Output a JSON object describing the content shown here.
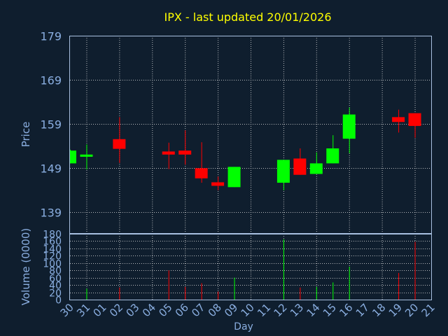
{
  "title": "IPX - last updated 20/01/2026",
  "colors": {
    "up": "#00ff00",
    "down": "#ff0000",
    "background": "#0f1e2e",
    "text": "#8aaee0",
    "title": "#ffff00"
  },
  "chart_data": [
    {
      "type": "candlestick",
      "ylabel": "Price",
      "ylim": [
        134,
        179
      ],
      "yticks": [
        179,
        169,
        159,
        149,
        139
      ],
      "grid": true,
      "categories": [
        "30",
        "31",
        "01",
        "02",
        "03",
        "04",
        "05",
        "06",
        "07",
        "08",
        "09",
        "10",
        "11",
        "12",
        "13",
        "14",
        "15",
        "16",
        "17",
        "18",
        "19",
        "20",
        "21"
      ],
      "candles": [
        {
          "day": "30",
          "open": 150.0,
          "close": 152.9,
          "high": 153.1,
          "low": 150.0
        },
        {
          "day": "31",
          "open": 151.5,
          "close": 152.0,
          "high": 154.3,
          "low": 148.6
        },
        {
          "day": "02",
          "open": 155.5,
          "close": 153.3,
          "high": 160.5,
          "low": 150.1
        },
        {
          "day": "05",
          "open": 152.7,
          "close": 152.0,
          "high": 154.7,
          "low": 148.7
        },
        {
          "day": "06",
          "open": 152.9,
          "close": 152.0,
          "high": 157.5,
          "low": 149.7
        },
        {
          "day": "07",
          "open": 148.9,
          "close": 146.6,
          "high": 154.8,
          "low": 145.6
        },
        {
          "day": "08",
          "open": 145.7,
          "close": 144.9,
          "high": 147.0,
          "low": 143.9
        },
        {
          "day": "09",
          "open": 144.6,
          "close": 149.2,
          "high": 149.2,
          "low": 144.6
        },
        {
          "day": "12",
          "open": 145.6,
          "close": 150.8,
          "high": 150.8,
          "low": 143.9
        },
        {
          "day": "13",
          "open": 151.1,
          "close": 147.4,
          "high": 153.4,
          "low": 147.4
        },
        {
          "day": "14",
          "open": 147.6,
          "close": 150.0,
          "high": 152.5,
          "low": 147.6
        },
        {
          "day": "15",
          "open": 150.0,
          "close": 153.4,
          "high": 156.4,
          "low": 150.0
        },
        {
          "day": "16",
          "open": 155.6,
          "close": 161.1,
          "high": 162.7,
          "low": 152.3
        },
        {
          "day": "19",
          "open": 160.5,
          "close": 159.4,
          "high": 162.2,
          "low": 157.0
        },
        {
          "day": "20",
          "open": 161.4,
          "close": 158.5,
          "high": 161.4,
          "low": 155.8
        }
      ]
    },
    {
      "type": "bar",
      "xlabel": "Day",
      "ylabel": "Volume (0000)",
      "ylim": [
        0,
        180
      ],
      "yticks": [
        180,
        160,
        140,
        120,
        100,
        80,
        60,
        40,
        20,
        0
      ],
      "grid": true,
      "categories": [
        "30",
        "31",
        "01",
        "02",
        "03",
        "04",
        "05",
        "06",
        "07",
        "08",
        "09",
        "10",
        "11",
        "12",
        "13",
        "14",
        "15",
        "16",
        "17",
        "18",
        "19",
        "20",
        "21"
      ],
      "bars": [
        {
          "day": "31",
          "value": 30,
          "direction": "up"
        },
        {
          "day": "02",
          "value": 33,
          "direction": "down"
        },
        {
          "day": "05",
          "value": 80,
          "direction": "down"
        },
        {
          "day": "06",
          "value": 35,
          "direction": "down"
        },
        {
          "day": "07",
          "value": 45,
          "direction": "down"
        },
        {
          "day": "08",
          "value": 22,
          "direction": "down"
        },
        {
          "day": "09",
          "value": 60,
          "direction": "up"
        },
        {
          "day": "12",
          "value": 165,
          "direction": "up"
        },
        {
          "day": "13",
          "value": 33,
          "direction": "down"
        },
        {
          "day": "14",
          "value": 35,
          "direction": "up"
        },
        {
          "day": "15",
          "value": 47,
          "direction": "up"
        },
        {
          "day": "16",
          "value": 90,
          "direction": "up"
        },
        {
          "day": "19",
          "value": 73,
          "direction": "down"
        },
        {
          "day": "20",
          "value": 158,
          "direction": "down"
        }
      ]
    }
  ]
}
